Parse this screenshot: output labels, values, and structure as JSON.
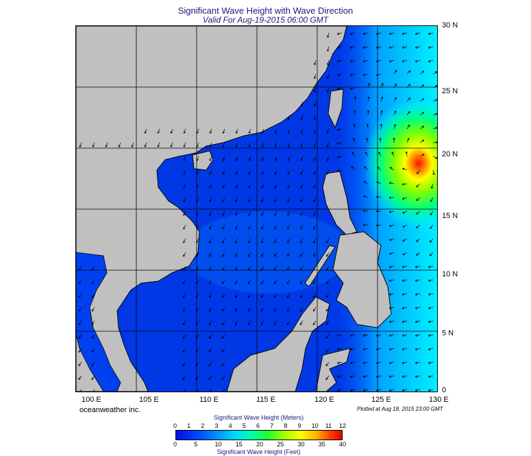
{
  "header": {
    "title": "Significant Wave Height with Wave Direction",
    "subtitle": "Valid For Aug-19-2015 06:00 GMT"
  },
  "axes": {
    "lat_labels": [
      "30 N",
      "25 N",
      "20 N",
      "15 N",
      "10 N",
      "5 N",
      "0"
    ],
    "lon_labels": [
      "100 E",
      "105 E",
      "110 E",
      "115 E",
      "120 E",
      "125 E",
      "130 E"
    ]
  },
  "footer": {
    "credit": "oceanweather inc.",
    "plotted": "Plotted at Aug 18, 2015 23:00 GMT"
  },
  "legend": {
    "meters_title": "Significant Wave Height (Meters)",
    "meters_ticks": [
      "0",
      "1",
      "2",
      "3",
      "4",
      "5",
      "6",
      "7",
      "8",
      "9",
      "10",
      "11",
      "12"
    ],
    "feet_title": "Significant Wave Height (Feet)",
    "feet_ticks": [
      "0",
      "5",
      "10",
      "15",
      "20",
      "25",
      "30",
      "35",
      "40"
    ]
  },
  "colors": {
    "land": "#c0c0c0",
    "sea_low": "#0038e6",
    "sea_mid": "#0090ff",
    "sea_high": "#00ffe0",
    "peak": "#ff2000"
  }
}
